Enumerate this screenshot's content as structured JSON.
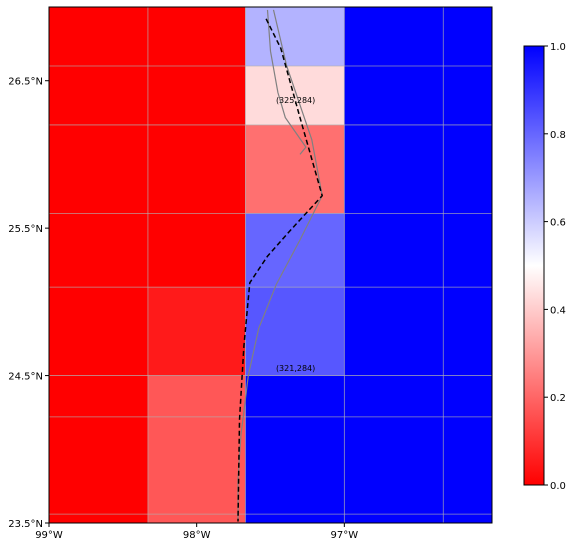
{
  "map": {
    "lon_range": [
      -99.0,
      -96.0
    ],
    "lat_range": [
      23.5,
      27.0
    ],
    "lon_edges": [
      -99.0,
      -98.33,
      -97.67,
      -97.0,
      -96.0
    ],
    "lat_edges": [
      23.5,
      24.5,
      25.1,
      25.6,
      26.2,
      26.6,
      27.0
    ],
    "cells": [
      {
        "col": 0,
        "row": 0,
        "value": 0.0
      },
      {
        "col": 1,
        "row": 0,
        "value": 0.17
      },
      {
        "col": 2,
        "row": 0,
        "value": 1.0
      },
      {
        "col": 3,
        "row": 0,
        "value": 1.0
      },
      {
        "col": 0,
        "row": 1,
        "value": 0.0
      },
      {
        "col": 1,
        "row": 1,
        "value": 0.05
      },
      {
        "col": 2,
        "row": 1,
        "value": 0.83
      },
      {
        "col": 3,
        "row": 1,
        "value": 1.0
      },
      {
        "col": 0,
        "row": 2,
        "value": 0.0
      },
      {
        "col": 1,
        "row": 2,
        "value": 0.0
      },
      {
        "col": 2,
        "row": 2,
        "value": 0.8
      },
      {
        "col": 3,
        "row": 2,
        "value": 1.0
      },
      {
        "col": 0,
        "row": 3,
        "value": 0.0
      },
      {
        "col": 1,
        "row": 3,
        "value": 0.0
      },
      {
        "col": 2,
        "row": 3,
        "value": 0.22
      },
      {
        "col": 3,
        "row": 3,
        "value": 1.0
      },
      {
        "col": 0,
        "row": 4,
        "value": 0.0
      },
      {
        "col": 1,
        "row": 4,
        "value": 0.0
      },
      {
        "col": 2,
        "row": 4,
        "value": 0.43
      },
      {
        "col": 3,
        "row": 4,
        "value": 1.0
      },
      {
        "col": 0,
        "row": 5,
        "value": 0.0
      },
      {
        "col": 1,
        "row": 5,
        "value": 0.0
      },
      {
        "col": 2,
        "row": 5,
        "value": 0.65
      },
      {
        "col": 3,
        "row": 5,
        "value": 1.0
      }
    ],
    "cell_labels": [
      {
        "text": "(325,284)",
        "lon": -97.33,
        "lat": 26.35
      },
      {
        "text": "(321,284)",
        "lon": -97.33,
        "lat": 24.53
      }
    ],
    "x_ticks": [
      {
        "lon": -99.0,
        "label": "99°W"
      },
      {
        "lon": -98.0,
        "label": "98°W"
      },
      {
        "lon": -97.0,
        "label": "97°W"
      }
    ],
    "y_ticks": [
      {
        "lat": 23.5,
        "label": "23.5°N"
      },
      {
        "lat": 24.5,
        "label": "24.5°N"
      },
      {
        "lat": 25.5,
        "label": "25.5°N"
      },
      {
        "lat": 26.5,
        "label": "26.5°N"
      }
    ],
    "grid_lons": [
      -98.33,
      -97.67,
      -97.0,
      -96.33
    ],
    "grid_lats": [
      23.56,
      24.22,
      24.5,
      25.1,
      25.6,
      26.2,
      26.6
    ],
    "track": [
      [
        -97.53,
        26.92
      ],
      [
        -97.43,
        26.72
      ],
      [
        -97.3,
        26.25
      ],
      [
        -97.15,
        25.72
      ],
      [
        -97.37,
        25.48
      ],
      [
        -97.52,
        25.31
      ],
      [
        -97.64,
        25.13
      ],
      [
        -97.68,
        24.7
      ],
      [
        -97.71,
        24.2
      ],
      [
        -97.72,
        23.51
      ]
    ],
    "coast_outer": [
      [
        -97.48,
        26.98
      ],
      [
        -97.39,
        26.6
      ],
      [
        -97.22,
        26.1
      ],
      [
        -97.15,
        25.72
      ],
      [
        -97.3,
        25.42
      ],
      [
        -97.46,
        25.12
      ],
      [
        -97.58,
        24.82
      ],
      [
        -97.65,
        24.5
      ],
      [
        -97.7,
        24.1
      ],
      [
        -97.72,
        23.8
      ],
      [
        -97.72,
        23.52
      ]
    ],
    "coast_inner": [
      [
        -97.52,
        26.98
      ],
      [
        -97.5,
        26.7
      ],
      [
        -97.45,
        26.42
      ],
      [
        -97.4,
        26.25
      ],
      [
        -97.26,
        26.05
      ],
      [
        -97.3,
        26.0
      ]
    ],
    "colorbar": {
      "ticks": [
        {
          "value": 0.0,
          "label": "0.0"
        },
        {
          "value": 0.2,
          "label": "0.2"
        },
        {
          "value": 0.4,
          "label": "0.4"
        },
        {
          "value": 0.6,
          "label": "0.6"
        },
        {
          "value": 0.8,
          "label": "0.8"
        },
        {
          "value": 1.0,
          "label": "1.0"
        }
      ],
      "colormap": "bwr_r",
      "low_color": "#ff0000",
      "mid_color": "#ffffff",
      "high_color": "#0000ff"
    },
    "colors": {
      "grid": "#b0b0b0",
      "coast": "#808080",
      "track": "#000000"
    }
  }
}
